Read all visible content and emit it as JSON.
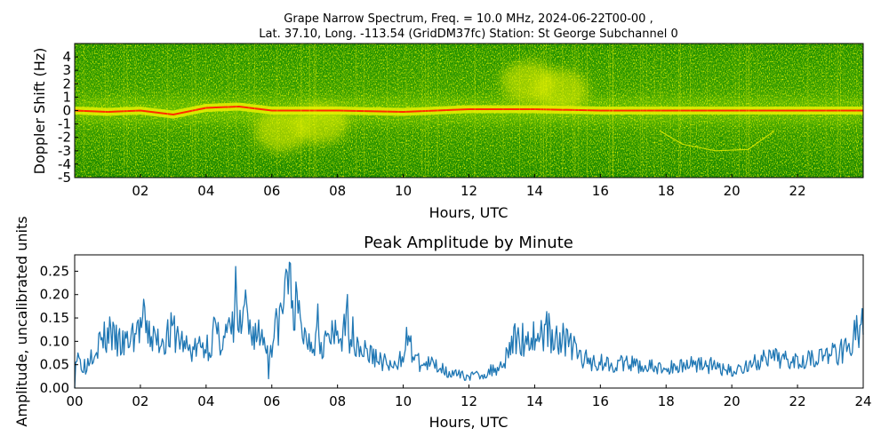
{
  "suptitle": {
    "line1": "Grape Narrow Spectrum, Freq. = 10.0 MHz, 2024-06-22T00-00 ,",
    "line2": "Lat.  37.10, Long. -113.54 (GridDM37fc) Station: St George Subchannel 0"
  },
  "chart_data": [
    {
      "type": "heatmap",
      "xlabel": "Hours, UTC",
      "ylabel": "Doppler Shift (Hz)",
      "xlim": [
        0,
        24
      ],
      "ylim": [
        -5,
        5
      ],
      "x_ticks": [
        "02",
        "04",
        "06",
        "08",
        "10",
        "12",
        "14",
        "16",
        "18",
        "20",
        "22"
      ],
      "y_ticks": [
        "4",
        "3",
        "2",
        "1",
        "0",
        "-1",
        "-2",
        "-3",
        "-4",
        "-5"
      ],
      "colormap": [
        "#008a00",
        "#6abf00",
        "#e8f000",
        "#ff2a00"
      ],
      "carrier_trace": [
        {
          "hour": 0.0,
          "hz": 0.0
        },
        {
          "hour": 1.0,
          "hz": -0.1
        },
        {
          "hour": 2.0,
          "hz": 0.0
        },
        {
          "hour": 3.0,
          "hz": -0.3
        },
        {
          "hour": 4.0,
          "hz": 0.2
        },
        {
          "hour": 5.0,
          "hz": 0.3
        },
        {
          "hour": 6.0,
          "hz": 0.0
        },
        {
          "hour": 8.0,
          "hz": 0.0
        },
        {
          "hour": 10.0,
          "hz": -0.1
        },
        {
          "hour": 12.0,
          "hz": 0.1
        },
        {
          "hour": 14.0,
          "hz": 0.1
        },
        {
          "hour": 16.0,
          "hz": 0.0
        },
        {
          "hour": 24.0,
          "hz": 0.0
        }
      ],
      "secondary_trace": [
        {
          "hour": 17.8,
          "hz": -1.5
        },
        {
          "hour": 18.5,
          "hz": -2.5
        },
        {
          "hour": 19.5,
          "hz": -3.0
        },
        {
          "hour": 20.5,
          "hz": -2.9
        },
        {
          "hour": 21.3,
          "hz": -1.5
        }
      ],
      "disturbances": [
        {
          "hour": 6.3,
          "hz": -1.6
        },
        {
          "hour": 7.5,
          "hz": -1.0
        },
        {
          "hour": 13.8,
          "hz": 2.2
        },
        {
          "hour": 14.8,
          "hz": 1.6
        }
      ]
    },
    {
      "type": "line",
      "title": "Peak Amplitude by Minute",
      "xlabel": "Hours, UTC",
      "ylabel": "Amplitude, uncalibrated units",
      "xlim": [
        0,
        24
      ],
      "ylim": [
        0,
        0.285
      ],
      "x_ticks": [
        "00",
        "02",
        "04",
        "06",
        "08",
        "10",
        "12",
        "14",
        "16",
        "18",
        "20",
        "22",
        "24"
      ],
      "y_ticks": [
        "0.00",
        "0.05",
        "0.10",
        "0.15",
        "0.20",
        "0.25"
      ],
      "series": [
        {
          "color": "#1f77b4",
          "anchors": [
            {
              "hour": 0.0,
              "value": 0.0
            },
            {
              "hour": 0.03,
              "value": 0.06
            },
            {
              "hour": 0.3,
              "value": 0.05
            },
            {
              "hour": 0.6,
              "value": 0.09
            },
            {
              "hour": 1.0,
              "value": 0.11
            },
            {
              "hour": 1.5,
              "value": 0.09
            },
            {
              "hour": 2.0,
              "value": 0.13
            },
            {
              "hour": 2.5,
              "value": 0.1
            },
            {
              "hour": 3.0,
              "value": 0.12
            },
            {
              "hour": 3.5,
              "value": 0.08
            },
            {
              "hour": 4.0,
              "value": 0.09
            },
            {
              "hour": 4.5,
              "value": 0.11
            },
            {
              "hour": 5.0,
              "value": 0.13
            },
            {
              "hour": 5.5,
              "value": 0.12
            },
            {
              "hour": 6.0,
              "value": 0.1
            },
            {
              "hour": 6.3,
              "value": 0.16
            },
            {
              "hour": 6.5,
              "value": 0.22
            },
            {
              "hour": 7.0,
              "value": 0.11
            },
            {
              "hour": 7.5,
              "value": 0.1
            },
            {
              "hour": 8.0,
              "value": 0.11
            },
            {
              "hour": 8.4,
              "value": 0.12
            },
            {
              "hour": 8.8,
              "value": 0.08
            },
            {
              "hour": 9.3,
              "value": 0.06
            },
            {
              "hour": 9.8,
              "value": 0.04
            },
            {
              "hour": 10.1,
              "value": 0.1
            },
            {
              "hour": 10.5,
              "value": 0.05
            },
            {
              "hour": 11.0,
              "value": 0.05
            },
            {
              "hour": 11.5,
              "value": 0.03
            },
            {
              "hour": 12.0,
              "value": 0.025
            },
            {
              "hour": 12.5,
              "value": 0.03
            },
            {
              "hour": 13.0,
              "value": 0.05
            },
            {
              "hour": 13.3,
              "value": 0.1
            },
            {
              "hour": 14.0,
              "value": 0.11
            },
            {
              "hour": 14.5,
              "value": 0.12
            },
            {
              "hour": 15.0,
              "value": 0.1
            },
            {
              "hour": 15.5,
              "value": 0.06
            },
            {
              "hour": 16.0,
              "value": 0.055
            },
            {
              "hour": 17.0,
              "value": 0.05
            },
            {
              "hour": 18.0,
              "value": 0.04
            },
            {
              "hour": 18.5,
              "value": 0.05
            },
            {
              "hour": 19.0,
              "value": 0.055
            },
            {
              "hour": 19.5,
              "value": 0.045
            },
            {
              "hour": 20.0,
              "value": 0.035
            },
            {
              "hour": 20.5,
              "value": 0.05
            },
            {
              "hour": 21.0,
              "value": 0.06
            },
            {
              "hour": 22.0,
              "value": 0.065
            },
            {
              "hour": 23.0,
              "value": 0.07
            },
            {
              "hour": 23.5,
              "value": 0.09
            },
            {
              "hour": 23.9,
              "value": 0.12
            },
            {
              "hour": 24.0,
              "value": 0.06
            }
          ],
          "spikes": [
            {
              "hour": 0.1,
              "value": 0.075
            },
            {
              "hour": 0.35,
              "value": 0.025
            },
            {
              "hour": 1.08,
              "value": 0.16
            },
            {
              "hour": 2.1,
              "value": 0.19
            },
            {
              "hour": 4.25,
              "value": 0.17
            },
            {
              "hour": 4.9,
              "value": 0.26
            },
            {
              "hour": 5.2,
              "value": 0.21
            },
            {
              "hour": 5.9,
              "value": 0.02
            },
            {
              "hour": 6.45,
              "value": 0.285
            },
            {
              "hour": 7.4,
              "value": 0.18
            },
            {
              "hour": 8.3,
              "value": 0.2
            },
            {
              "hour": 10.1,
              "value": 0.13
            },
            {
              "hour": 14.35,
              "value": 0.165
            },
            {
              "hour": 23.8,
              "value": 0.155
            },
            {
              "hour": 23.97,
              "value": 0.175
            }
          ]
        }
      ]
    }
  ]
}
